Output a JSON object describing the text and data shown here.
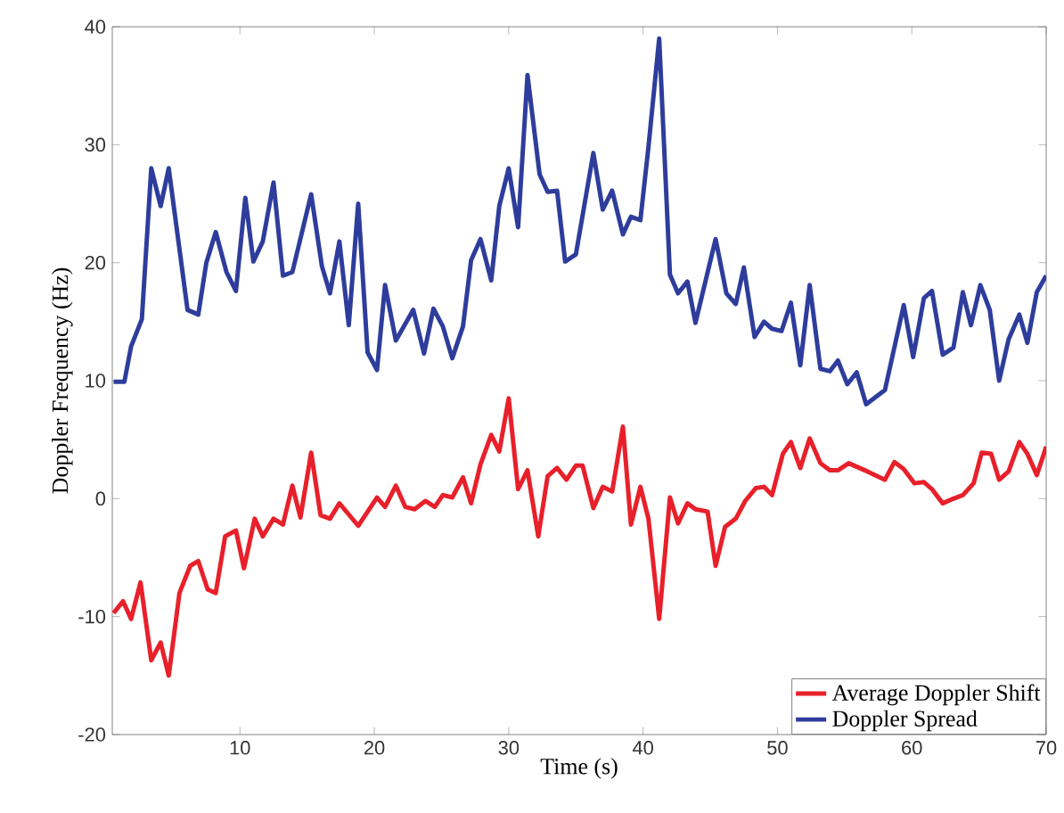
{
  "chart_data": {
    "type": "line",
    "xlabel": "Time (s)",
    "ylabel": "Doppler Frequency (Hz)",
    "xlim": [
      0.5,
      70
    ],
    "xticks": [
      10,
      20,
      30,
      40,
      50,
      60,
      70
    ],
    "ylim": [
      -20,
      40
    ],
    "yticks": [
      -20,
      -10,
      0,
      10,
      20,
      30,
      40
    ],
    "grid": false,
    "legend": "bottom right",
    "marker": "none",
    "line_style": "solid",
    "series": [
      {
        "name": "Average Doppler Shift",
        "color": "#e8202a",
        "x": [
          0.6,
          1.3,
          1.9,
          2.6,
          3.4,
          4.1,
          4.7,
          5.5,
          6.3,
          6.9,
          7.6,
          8.2,
          8.9,
          9.7,
          10.3,
          11.1,
          11.7,
          12.5,
          13.2,
          13.9,
          14.5,
          15.3,
          16.0,
          16.7,
          17.4,
          18.8,
          20.2,
          20.8,
          21.6,
          22.3,
          23.0,
          23.8,
          24.5,
          25.1,
          25.8,
          26.6,
          27.2,
          27.9,
          28.7,
          29.3,
          30.0,
          30.7,
          31.4,
          32.2,
          32.9,
          33.6,
          34.3,
          35.0,
          35.5,
          36.3,
          37.0,
          37.7,
          38.5,
          39.1,
          39.8,
          40.4,
          41.2,
          42.0,
          42.6,
          43.3,
          43.9,
          44.8,
          45.4,
          46.1,
          46.9,
          47.6,
          48.4,
          49.0,
          49.6,
          50.4,
          51.0,
          51.7,
          52.4,
          53.2,
          53.9,
          54.5,
          55.3,
          56.7,
          58.0,
          58.7,
          59.4,
          60.2,
          60.9,
          61.5,
          62.3,
          63.1,
          63.8,
          64.6,
          65.2,
          65.9,
          66.5,
          67.2,
          68.0,
          68.6,
          69.3,
          70.0
        ],
        "values": [
          -9.7,
          -8.7,
          -10.2,
          -7.1,
          -13.7,
          -12.2,
          -15,
          -8,
          -5.7,
          -5.3,
          -7.7,
          -8,
          -3.2,
          -2.7,
          -5.9,
          -1.7,
          -3.2,
          -1.7,
          -2.2,
          1.1,
          -1.6,
          3.9,
          -1.4,
          -1.7,
          -0.4,
          -2.3,
          0.1,
          -0.7,
          1.1,
          -0.7,
          -0.9,
          -0.2,
          -0.7,
          0.3,
          0.1,
          1.8,
          -0.4,
          2.9,
          5.4,
          4,
          8.5,
          0.8,
          2.4,
          -3.2,
          1.9,
          2.6,
          1.6,
          2.8,
          2.8,
          -0.8,
          1.0,
          0.6,
          6.1,
          -2.2,
          1.0,
          -1.7,
          -10.2,
          0.1,
          -2.1,
          -0.4,
          -0.9,
          -1.1,
          -5.7,
          -2.4,
          -1.7,
          -0.2,
          0.9,
          1.0,
          0.3,
          3.8,
          4.8,
          2.6,
          5.1,
          3.0,
          2.4,
          2.4,
          3.0,
          2.3,
          1.6,
          3.1,
          2.5,
          1.3,
          1.4,
          0.8,
          -0.4,
          0,
          0.3,
          1.3,
          3.9,
          3.8,
          1.6,
          2.3,
          4.8,
          3.8,
          2.0,
          4.4
        ]
      },
      {
        "name": "Doppler Spread",
        "color": "#2e3d9c",
        "x": [
          0.6,
          1.4,
          1.9,
          2.7,
          3.4,
          4.1,
          4.7,
          5.4,
          6.1,
          6.9,
          7.5,
          8.2,
          9.0,
          9.7,
          10.4,
          11.0,
          11.7,
          12.5,
          13.2,
          13.9,
          15.3,
          16.1,
          16.7,
          17.4,
          18.1,
          18.8,
          19.5,
          20.2,
          20.8,
          21.6,
          22.9,
          23.7,
          24.4,
          25.1,
          25.8,
          26.6,
          27.2,
          27.9,
          28.7,
          29.3,
          30.0,
          30.7,
          31.4,
          32.3,
          32.9,
          33.6,
          34.2,
          35.0,
          36.3,
          37.0,
          37.7,
          38.5,
          39.1,
          39.8,
          40.4,
          41.2,
          42.0,
          42.6,
          43.3,
          43.9,
          45.4,
          46.2,
          46.9,
          47.5,
          48.3,
          49.0,
          49.6,
          50.3,
          51.0,
          51.7,
          52.4,
          53.2,
          53.9,
          54.5,
          55.2,
          55.9,
          56.6,
          58.0,
          59.4,
          60.1,
          60.9,
          61.5,
          62.3,
          63.1,
          63.8,
          64.4,
          65.1,
          65.8,
          66.5,
          67.2,
          68.0,
          68.6,
          69.3,
          70.0
        ],
        "values": [
          9.9,
          9.9,
          12.9,
          15.2,
          28,
          24.8,
          28,
          22,
          16,
          15.6,
          20,
          22.6,
          19.2,
          17.6,
          25.5,
          20.1,
          21.8,
          26.8,
          18.9,
          19.2,
          25.8,
          19.7,
          17.4,
          21.8,
          14.7,
          25,
          12.4,
          10.9,
          18.1,
          13.4,
          16,
          12.3,
          16.1,
          14.6,
          11.9,
          14.6,
          20.2,
          22,
          18.5,
          24.8,
          28,
          23,
          35.9,
          27.5,
          26,
          26.1,
          20.1,
          20.7,
          29.3,
          24.5,
          26.1,
          22.4,
          23.9,
          23.6,
          29.8,
          39.0,
          19,
          17.4,
          18.4,
          14.9,
          22,
          17.4,
          16.5,
          19.6,
          13.7,
          15,
          14.4,
          14.2,
          16.6,
          11.3,
          18.1,
          11,
          10.8,
          11.7,
          9.7,
          10.7,
          8,
          9.2,
          16.4,
          12,
          17,
          17.6,
          12.2,
          12.8,
          17.5,
          14.7,
          18.1,
          16,
          10,
          13.5,
          15.6,
          13.2,
          17.5,
          18.9
        ]
      }
    ]
  }
}
